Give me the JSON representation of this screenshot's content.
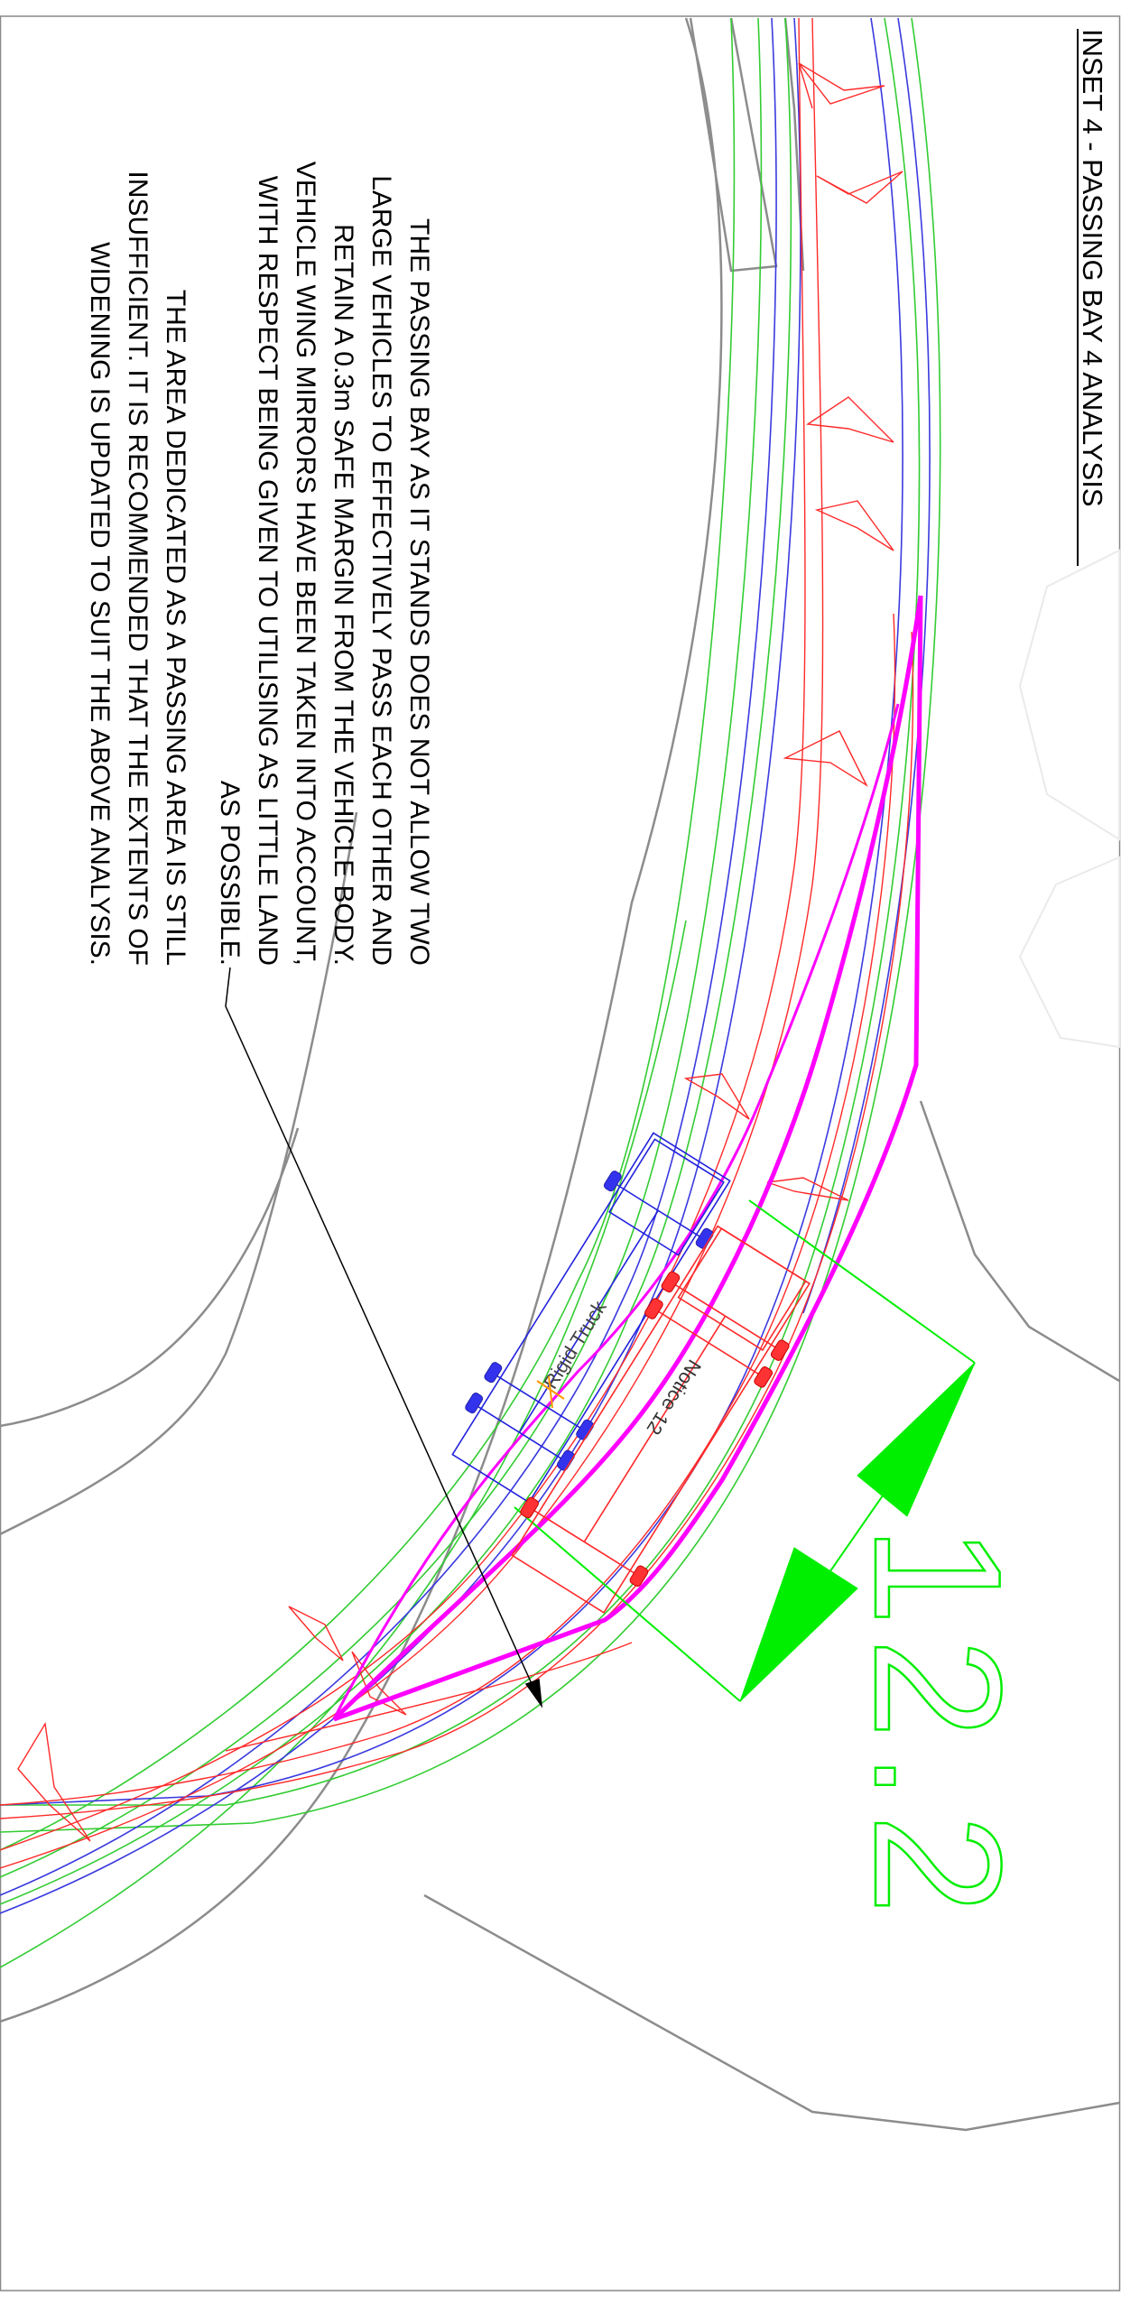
{
  "title": "INSET 4 - PASSING BAY 4 ANALYSIS",
  "note1": {
    "lines": [
      "THE PASSING BAY AS IT STANDS DOES NOT ALLOW TWO",
      "LARGE VEHICLES TO EFFECTIVELY PASS EACH OTHER AND",
      "RETAIN A 0.3m SAFE MARGIN FROM THE VEHICLE BODY.",
      "VEHICLE WING MIRRORS HAVE BEEN TAKEN INTO ACCOUNT,",
      "WITH RESPECT BEING GIVEN TO UTILISING AS LITTLE LAND",
      "AS POSSIBLE."
    ]
  },
  "note2": {
    "lines": [
      "THE AREA DEDICATED AS A PASSING AREA IS STILL",
      "INSUFFICIENT. IT IS RECOMMENDED THAT THE EXTENTS OF",
      "WIDENING IS UPDATED TO SUIT THE ABOVE ANALYSIS."
    ]
  },
  "dimension": {
    "value": "12.2"
  },
  "vehicles": {
    "blue_label": "Rigid Truck",
    "red_label": "Notice 12"
  },
  "colors": {
    "frame": "#888888",
    "boundary": "#8c8c8c",
    "road_green": "#33cc33",
    "road_blue": "#3a3adf",
    "swept_red": "#ff2a2a",
    "widening_magenta": "#ff00ff",
    "dimension_green": "#00ee00",
    "text": "#000000"
  }
}
